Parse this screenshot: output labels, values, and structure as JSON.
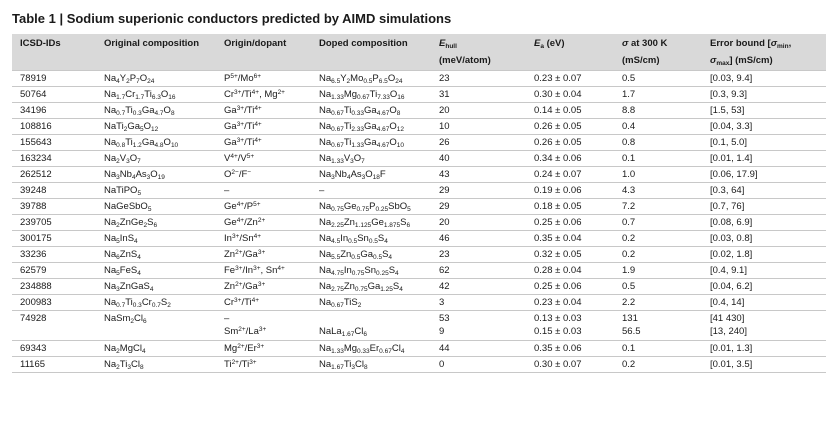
{
  "title": "Table 1 | Sodium superionic conductors predicted by AIMD simulations",
  "headers": {
    "icsd": "ICSD-IDs",
    "orig": "Original composition",
    "origin": "Origin/dopant",
    "doped": "Doped composition",
    "ehull_html": "<i>E</i><sub>hull</sub>",
    "ehull_unit": "(meV/atom)",
    "ea_html": "<i>E</i><sub>a</sub> (eV)",
    "sigma_html": "<i>σ</i> at 300 K",
    "sigma_unit": "(mS/cm)",
    "err_html": "Error bound [<i>σ</i><sub>min</sub>,",
    "err_html2": "<i>σ</i><sub>max</sub>] (mS/cm)"
  },
  "rows": [
    {
      "id": "78919",
      "orig": "Na<sub>4</sub>Y<sub>2</sub>P<sub>7</sub>O<sub>24</sub>",
      "dopant": "P<sup>5+</sup>/Mo<sup>6+</sup>",
      "doped": "Na<sub>6.5</sub>Y<sub>2</sub>Mo<sub>0.5</sub>P<sub>6.5</sub>O<sub>24</sub>",
      "ehull": "23",
      "ea": "0.23 ± 0.07",
      "sigma": "0.5",
      "err": "[0.03, 9.4]"
    },
    {
      "id": "50764",
      "orig": "Na<sub>1.7</sub>Cr<sub>1.7</sub>Ti<sub>6.3</sub>O<sub>16</sub>",
      "dopant": "Cr<sup>3+</sup>/Ti<sup>4+</sup>, Mg<sup>2+</sup>",
      "doped": "Na<sub>1.33</sub>Mg<sub>0.67</sub>Ti<sub>7.33</sub>O<sub>16</sub>",
      "ehull": "31",
      "ea": "0.30 ± 0.04",
      "sigma": "1.7",
      "err": "[0.3, 9.3]"
    },
    {
      "id": "34196",
      "orig": "Na<sub>0.7</sub>Ti<sub>0.3</sub>Ga<sub>4.7</sub>O<sub>8</sub>",
      "dopant": "Ga<sup>3+</sup>/Ti<sup>4+</sup>",
      "doped": "Na<sub>0.67</sub>Ti<sub>0.33</sub>Ga<sub>4.67</sub>O<sub>8</sub>",
      "ehull": "20",
      "ea": "0.14 ± 0.05",
      "sigma": "8.8",
      "err": "[1.5, 53]"
    },
    {
      "id": "108816",
      "orig": "NaTi<sub>2</sub>Ga<sub>5</sub>O<sub>12</sub>",
      "dopant": "Ga<sup>3+</sup>/Ti<sup>4+</sup>",
      "doped": "Na<sub>0.67</sub>Ti<sub>2.33</sub>Ga<sub>4.67</sub>O<sub>12</sub>",
      "ehull": "10",
      "ea": "0.26 ± 0.05",
      "sigma": "0.4",
      "err": "[0.04, 3.3]"
    },
    {
      "id": "155643",
      "orig": "Na<sub>0.8</sub>Ti<sub>1.2</sub>Ga<sub>4.8</sub>O<sub>10</sub>",
      "dopant": "Ga<sup>3+</sup>/Ti<sup>4+</sup>",
      "doped": "Na<sub>0.67</sub>Ti<sub>1.33</sub>Ga<sub>4.67</sub>O<sub>10</sub>",
      "ehull": "26",
      "ea": "0.26 ± 0.05",
      "sigma": "0.8",
      "err": "[0.1, 5.0]"
    },
    {
      "id": "163234",
      "orig": "Na<sub>2</sub>V<sub>3</sub>O<sub>7</sub>",
      "dopant": "V<sup>4+</sup>/V<sup>5+</sup>",
      "doped": "Na<sub>1.33</sub>V<sub>3</sub>O<sub>7</sub>",
      "ehull": "40",
      "ea": "0.34 ± 0.06",
      "sigma": "0.1",
      "err": "[0.01, 1.4]"
    },
    {
      "id": "262512",
      "orig": "Na<sub>3</sub>Nb<sub>4</sub>As<sub>3</sub>O<sub>19</sub>",
      "dopant": "O<sup>2−</sup>/F<sup>−</sup>",
      "doped": "Na<sub>3</sub>Nb<sub>4</sub>As<sub>3</sub>O<sub>18</sub>F",
      "ehull": "43",
      "ea": "0.24 ± 0.07",
      "sigma": "1.0",
      "err": "[0.06, 17.9]"
    },
    {
      "id": "39248",
      "orig": "NaTiPO<sub>5</sub>",
      "dopant": "–",
      "doped": "–",
      "ehull": "29",
      "ea": "0.19 ± 0.06",
      "sigma": "4.3",
      "err": "[0.3, 64]"
    },
    {
      "id": "39788",
      "orig": "NaGeSbO<sub>5</sub>",
      "dopant": "Ge<sup>4+</sup>/P<sup>5+</sup>",
      "doped": "Na<sub>0.75</sub>Ge<sub>0.75</sub>P<sub>0.25</sub>SbO<sub>5</sub>",
      "ehull": "29",
      "ea": "0.18 ± 0.05",
      "sigma": "7.2",
      "err": "[0.7, 76]"
    },
    {
      "id": "239705",
      "orig": "Na<sub>2</sub>ZnGe<sub>2</sub>S<sub>6</sub>",
      "dopant": "Ge<sup>4+</sup>/Zn<sup>2+</sup>",
      "doped": "Na<sub>2.25</sub>Zn<sub>1.125</sub>Ge<sub>1.875</sub>S<sub>6</sub>",
      "ehull": "20",
      "ea": "0.25 ± 0.06",
      "sigma": "0.7",
      "err": "[0.08, 6.9]"
    },
    {
      "id": "300175",
      "orig": "Na<sub>5</sub>InS<sub>4</sub>",
      "dopant": "In<sup>3+</sup>/Sn<sup>4+</sup>",
      "doped": "Na<sub>4.5</sub>In<sub>0.5</sub>Sn<sub>0.5</sub>S<sub>4</sub>",
      "ehull": "46",
      "ea": "0.35 ± 0.04",
      "sigma": "0.2",
      "err": "[0.03, 0.8]"
    },
    {
      "id": "33236",
      "orig": "Na<sub>6</sub>ZnS<sub>4</sub>",
      "dopant": "Zn<sup>2+</sup>/Ga<sup>3+</sup>",
      "doped": "Na<sub>5.5</sub>Zn<sub>0.5</sub>Ga<sub>0.5</sub>S<sub>4</sub>",
      "ehull": "23",
      "ea": "0.32 ± 0.05",
      "sigma": "0.2",
      "err": "[0.02, 1.8]"
    },
    {
      "id": "62579",
      "orig": "Na<sub>5</sub>FeS<sub>4</sub>",
      "dopant": "Fe<sup>3+</sup>/In<sup>3+</sup>, Sn<sup>4+</sup>",
      "doped": "Na<sub>4.75</sub>In<sub>0.75</sub>Sn<sub>0.25</sub>S<sub>4</sub>",
      "ehull": "62",
      "ea": "0.28 ± 0.04",
      "sigma": "1.9",
      "err": "[0.4, 9.1]"
    },
    {
      "id": "234888",
      "orig": "Na<sub>3</sub>ZnGaS<sub>4</sub>",
      "dopant": "Zn<sup>2+</sup>/Ga<sup>3+</sup>",
      "doped": "Na<sub>2.75</sub>Zn<sub>0.75</sub>Ga<sub>1.25</sub>S<sub>4</sub>",
      "ehull": "42",
      "ea": "0.25 ± 0.06",
      "sigma": "0.5",
      "err": "[0.04, 6.2]"
    },
    {
      "id": "200983",
      "orig": "Na<sub>0.7</sub>Ti<sub>0.3</sub>Cr<sub>0.7</sub>S<sub>2</sub>",
      "dopant": "Cr<sup>3+</sup>/Ti<sup>4+</sup>",
      "doped": "Na<sub>0.67</sub>TiS<sub>2</sub>",
      "ehull": "3",
      "ea": "0.23 ± 0.04",
      "sigma": "2.2",
      "err": "[0.4, 14]"
    },
    {
      "id": "74928",
      "orig": "NaSm<sub>2</sub>Cl<sub>6</sub>",
      "dopant": "–<br>Sm<sup>2+</sup>/La<sup>3+</sup>",
      "doped": "<br>NaLa<sub>1.67</sub>Cl<sub>6</sub>",
      "ehull": "53<br>9",
      "ea": "0.13 ± 0.03<br>0.15 ± 0.03",
      "sigma": "131<br>56.5",
      "err": "[41 430]<br>[13, 240]",
      "double": true
    },
    {
      "id": "69343",
      "orig": "Na<sub>2</sub>MgCl<sub>4</sub>",
      "dopant": "Mg<sup>2+</sup>/Er<sup>3+</sup>",
      "doped": "Na<sub>1.33</sub>Mg<sub>0.33</sub>Er<sub>0.67</sub>Cl<sub>4</sub>",
      "ehull": "44",
      "ea": "0.35 ± 0.06",
      "sigma": "0.1",
      "err": "[0.01, 1.3]"
    },
    {
      "id": "11165",
      "orig": "Na<sub>2</sub>Ti<sub>3</sub>Cl<sub>8</sub>",
      "dopant": "Ti<sup>2+</sup>/Ti<sup>3+</sup>",
      "doped": "Na<sub>1.67</sub>Ti<sub>3</sub>Cl<sub>8</sub>",
      "ehull": "0",
      "ea": "0.30 ± 0.07",
      "sigma": "0.2",
      "err": "[0.01, 3.5]"
    }
  ]
}
